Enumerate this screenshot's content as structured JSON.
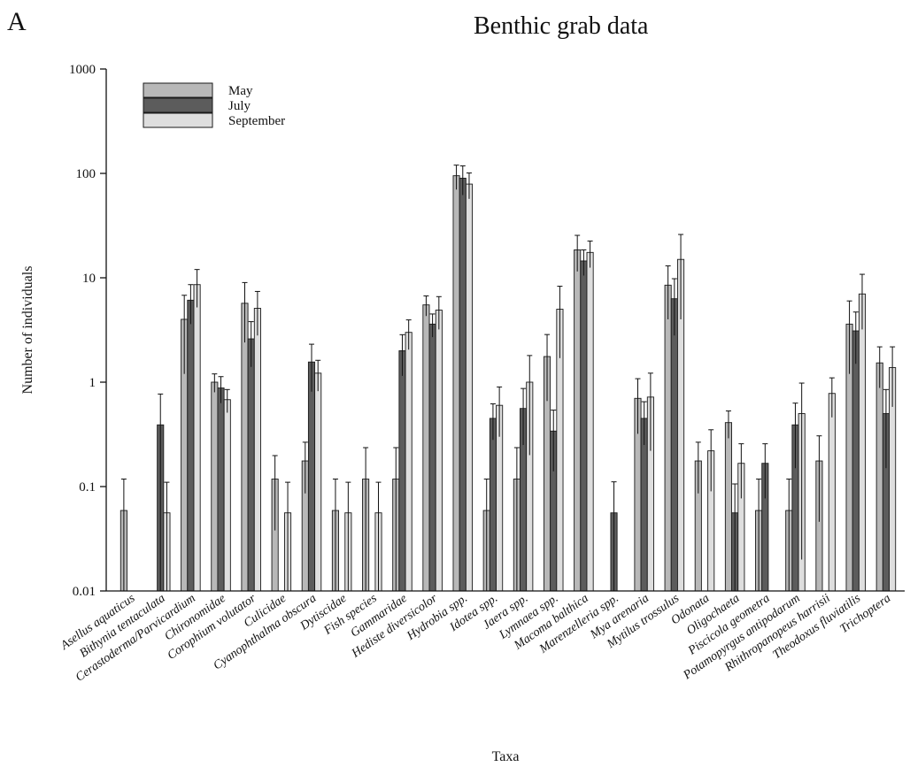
{
  "panel_label": "A",
  "chart_data": {
    "type": "bar",
    "title": "Benthic grab data",
    "xlabel": "Taxa",
    "ylabel": "Number of individuals",
    "yscale": "log",
    "ylim": [
      0.01,
      1000
    ],
    "yticks": [
      "0.01",
      "0.1",
      "1",
      "10",
      "100",
      "1000"
    ],
    "legend_position": "top-left",
    "grid": false,
    "error_bars": true,
    "categories": [
      "Asellus aquaticus",
      "Bithynia tentaculata",
      "Cerastoderma/Parvicardium",
      "Chironomidae",
      "Corophium volutator",
      "Culicidae",
      "Cyanophthalma obscura",
      "Dytiscidae",
      "Fish species",
      "Gammaridae",
      "Hediste diversicolor",
      "Hydrobia spp.",
      "Idotea spp.",
      "Jaera spp.",
      "Lymnaea spp.",
      "Macoma balthica",
      "Marenzelleria spp.",
      "Mya arenaria",
      "Mytilus trossulus",
      "Odonata",
      "Oligochaeta",
      "Piscicola geometra",
      "Potamopyrgus antipodarum",
      "Rhithropanopeus harrisii",
      "Theodoxus fluviatilis",
      "Trichoptera"
    ],
    "series": [
      {
        "name": "May",
        "color": "#b8b8b8",
        "values": [
          0.059,
          null,
          4.0,
          1.0,
          5.7,
          0.118,
          0.176,
          0.059,
          0.118,
          0.118,
          5.5,
          95,
          0.059,
          0.118,
          1.76,
          18.5,
          null,
          0.7,
          8.5,
          0.176,
          0.41,
          0.059,
          0.059,
          0.176,
          3.6,
          1.53
        ],
        "errors": [
          0.059,
          null,
          2.8,
          0.2,
          3.3,
          0.08,
          0.09,
          0.059,
          0.118,
          0.118,
          1.2,
          25,
          0.059,
          0.118,
          1.1,
          7.0,
          null,
          0.38,
          4.5,
          0.09,
          0.12,
          0.059,
          0.059,
          0.13,
          2.4,
          0.65
        ]
      },
      {
        "name": "July",
        "color": "#5c5c5c",
        "values": [
          null,
          0.39,
          6.1,
          0.88,
          2.6,
          null,
          1.56,
          null,
          null,
          2.0,
          3.6,
          90,
          0.45,
          0.56,
          0.34,
          14.5,
          0.056,
          0.45,
          6.3,
          null,
          0.056,
          0.167,
          0.39,
          null,
          3.1,
          0.5
        ],
        "errors": [
          null,
          0.38,
          2.5,
          0.25,
          1.2,
          null,
          0.75,
          null,
          null,
          0.85,
          0.9,
          28,
          0.17,
          0.31,
          0.2,
          4.0,
          0.055,
          0.2,
          3.5,
          null,
          0.05,
          0.09,
          0.24,
          null,
          1.6,
          0.35
        ]
      },
      {
        "name": "September",
        "color": "#dedede",
        "values": [
          null,
          0.056,
          8.6,
          0.68,
          5.1,
          0.056,
          1.22,
          0.056,
          0.056,
          3.0,
          4.9,
          79,
          0.6,
          1.0,
          5.0,
          17.5,
          null,
          0.72,
          15.0,
          0.22,
          0.167,
          null,
          0.5,
          0.78,
          7.0,
          1.38
        ],
        "errors": [
          null,
          0.054,
          3.4,
          0.17,
          2.3,
          0.054,
          0.4,
          0.054,
          0.054,
          0.95,
          1.7,
          22,
          0.3,
          0.8,
          3.3,
          5.0,
          null,
          0.5,
          11.0,
          0.13,
          0.09,
          null,
          0.48,
          0.32,
          3.8,
          0.8
        ]
      }
    ]
  }
}
